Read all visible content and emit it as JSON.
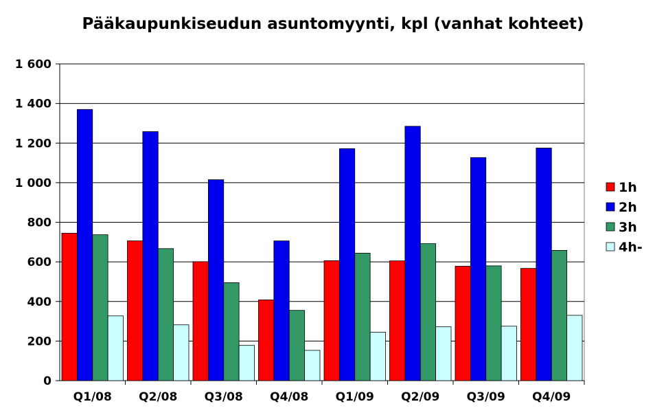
{
  "chart_data": {
    "type": "bar",
    "title": "Pääkaupunkiseudun asuntomyynti, kpl (vanhat kohteet)",
    "categories": [
      "Q1/08",
      "Q2/08",
      "Q3/08",
      "Q4/08",
      "Q1/09",
      "Q2/09",
      "Q3/09",
      "Q4/09"
    ],
    "series": [
      {
        "name": "1h",
        "color": "#ff0000",
        "values": [
          745,
          706,
          601,
          408,
          606,
          605,
          578,
          567
        ]
      },
      {
        "name": "2h",
        "color": "#0000ee",
        "values": [
          1370,
          1258,
          1015,
          706,
          1172,
          1285,
          1127,
          1175
        ]
      },
      {
        "name": "3h",
        "color": "#339966",
        "values": [
          737,
          667,
          495,
          355,
          644,
          692,
          580,
          658
        ]
      },
      {
        "name": "4h-",
        "color": "#ccffff",
        "values": [
          327,
          282,
          178,
          153,
          245,
          272,
          275,
          330
        ]
      }
    ],
    "ylim": [
      0,
      1600
    ],
    "yticks": [
      0,
      200,
      400,
      600,
      800,
      1000,
      1200,
      1400,
      1600
    ],
    "ytick_labels": [
      "0",
      "200",
      "400",
      "600",
      "800",
      "1 000",
      "1 200",
      "1 400",
      "1 600"
    ],
    "grid": true,
    "legend": "right"
  }
}
